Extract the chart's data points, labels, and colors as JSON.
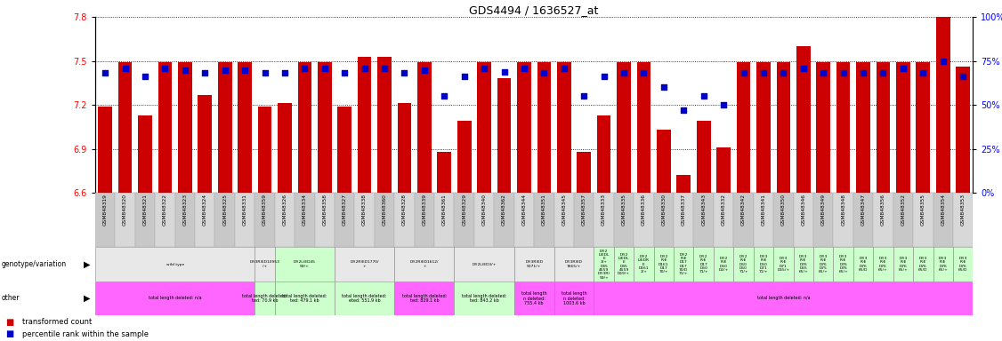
{
  "title": "GDS4494 / 1636527_at",
  "samples": [
    "GSM848319",
    "GSM848320",
    "GSM848321",
    "GSM848322",
    "GSM848323",
    "GSM848324",
    "GSM848325",
    "GSM848331",
    "GSM848359",
    "GSM848326",
    "GSM848334",
    "GSM848358",
    "GSM848327",
    "GSM848338",
    "GSM848360",
    "GSM848328",
    "GSM848339",
    "GSM848361",
    "GSM848329",
    "GSM848340",
    "GSM848362",
    "GSM848344",
    "GSM848351",
    "GSM848345",
    "GSM848357",
    "GSM848333",
    "GSM848335",
    "GSM848336",
    "GSM848330",
    "GSM848337",
    "GSM848343",
    "GSM848332",
    "GSM848342",
    "GSM848341",
    "GSM848350",
    "GSM848346",
    "GSM848349",
    "GSM848348",
    "GSM848347",
    "GSM848356",
    "GSM848352",
    "GSM848355",
    "GSM848354",
    "GSM848353"
  ],
  "red_values": [
    7.19,
    7.49,
    7.13,
    7.49,
    7.49,
    7.27,
    7.49,
    7.49,
    7.19,
    7.21,
    7.49,
    7.49,
    7.19,
    7.53,
    7.53,
    7.21,
    7.49,
    6.88,
    7.09,
    7.49,
    7.38,
    7.49,
    7.49,
    7.49,
    6.88,
    7.13,
    7.49,
    7.49,
    7.03,
    6.72,
    7.09,
    6.91,
    7.49,
    7.49,
    7.49,
    7.6,
    7.49,
    7.49,
    7.49,
    7.49,
    7.49,
    7.49,
    7.8,
    7.46
  ],
  "blue_values_pct": [
    68,
    71,
    66,
    71,
    70,
    68,
    70,
    70,
    68,
    68,
    71,
    71,
    68,
    71,
    71,
    68,
    70,
    55,
    66,
    71,
    69,
    71,
    68,
    71,
    55,
    66,
    68,
    68,
    60,
    47,
    55,
    50,
    68,
    68,
    68,
    71,
    68,
    68,
    68,
    68,
    71,
    68,
    75,
    66
  ],
  "ylim_left": [
    6.6,
    7.8
  ],
  "ylim_right": [
    0,
    100
  ],
  "yticks_left": [
    6.6,
    6.9,
    7.2,
    7.5,
    7.8
  ],
  "yticks_right": [
    0,
    25,
    50,
    75,
    100
  ],
  "bar_color": "#cc0000",
  "dot_color": "#0000cc",
  "genotype_groups": [
    {
      "label": "wild type",
      "start": 0,
      "end": 8,
      "color": "#e8e8e8"
    },
    {
      "label": "Df(3R)ED10953\n/+",
      "start": 8,
      "end": 9,
      "color": "#e8e8e8"
    },
    {
      "label": "Df(2L)ED45\n59/+",
      "start": 9,
      "end": 12,
      "color": "#ccffcc"
    },
    {
      "label": "Df(2R)ED1770/\n+",
      "start": 12,
      "end": 15,
      "color": "#e8e8e8"
    },
    {
      "label": "Df(2R)ED1612/\n+",
      "start": 15,
      "end": 18,
      "color": "#e8e8e8"
    },
    {
      "label": "Df(2L)ED3/+",
      "start": 18,
      "end": 21,
      "color": "#e8e8e8"
    },
    {
      "label": "Df(3R)ED\n5071/+",
      "start": 21,
      "end": 23,
      "color": "#e8e8e8"
    },
    {
      "label": "Df(3R)ED\n7665/+",
      "start": 23,
      "end": 25,
      "color": "#e8e8e8"
    },
    {
      "label": "Df(2\nL)EDL\nE\n3/+\nD45\n4559\nDf(3R)\n59/+",
      "start": 25,
      "end": 26,
      "color": "#ccffcc"
    },
    {
      "label": "Df(2\nL)EDL\nE\nD45\n4559\nD69/+",
      "start": 26,
      "end": 27,
      "color": "#ccffcc"
    },
    {
      "label": "Df(2\nL)EDR\nE\nD161\n2/+",
      "start": 27,
      "end": 28,
      "color": "#ccffcc"
    },
    {
      "label": "Df(2\nR)E\nD161\nD17\n70/+",
      "start": 28,
      "end": 29,
      "color": "#ccffcc"
    },
    {
      "label": "Df(2\nR)E\nD17\nD17\n70/D\n71/+",
      "start": 29,
      "end": 30,
      "color": "#ccffcc"
    },
    {
      "label": "Df(2\nR)E\nD17\nD50\n71/+",
      "start": 30,
      "end": 31,
      "color": "#ccffcc"
    },
    {
      "label": "Df(2\nR)E\nD50\nD2/+",
      "start": 31,
      "end": 32,
      "color": "#ccffcc"
    },
    {
      "label": "Df(2\nR)E\nD50\nD50\n71/+",
      "start": 32,
      "end": 33,
      "color": "#ccffcc"
    },
    {
      "label": "Df(3\nR)E\nD50\nD71\n71/+",
      "start": 33,
      "end": 34,
      "color": "#ccffcc"
    },
    {
      "label": "Df(3\nR)E\nD71\nD65/+",
      "start": 34,
      "end": 35,
      "color": "#ccffcc"
    },
    {
      "label": "Df(3\nR)E\nD76\nD65\n65/+",
      "start": 35,
      "end": 36,
      "color": "#ccffcc"
    },
    {
      "label": "Df(3\nR)E\nD76\nD75\n65/+",
      "start": 36,
      "end": 37,
      "color": "#ccffcc"
    },
    {
      "label": "Df(3\nR)E\nD76\nD76\n65/+",
      "start": 37,
      "end": 38,
      "color": "#ccffcc"
    },
    {
      "label": "Df(3\nR)E\nD76\n65/D",
      "start": 38,
      "end": 39,
      "color": "#ccffcc"
    },
    {
      "label": "Df(3\nR)E\nD76\n65/+",
      "start": 39,
      "end": 40,
      "color": "#ccffcc"
    },
    {
      "label": "Df(3\nR)E\nD76\n65/+",
      "start": 40,
      "end": 41,
      "color": "#ccffcc"
    },
    {
      "label": "Df(3\nR)E\nD76\n65/D",
      "start": 41,
      "end": 42,
      "color": "#ccffcc"
    },
    {
      "label": "Df(3\nR)E\nD76\n65/+",
      "start": 42,
      "end": 43,
      "color": "#ccffcc"
    },
    {
      "label": "Df(3\nR)E\nD76\n65/D",
      "start": 43,
      "end": 44,
      "color": "#ccffcc"
    }
  ],
  "other_groups": [
    {
      "label": "total length deleted: n/a",
      "start": 0,
      "end": 8,
      "color": "#ff66ff"
    },
    {
      "label": "total length deleted:\nted: 70.9 kb",
      "start": 8,
      "end": 9,
      "color": "#ccffcc"
    },
    {
      "label": "total length deleted:\nted: 479.1 kb",
      "start": 9,
      "end": 12,
      "color": "#ccffcc"
    },
    {
      "label": "total length deleted:\neted: 551.9 kb",
      "start": 12,
      "end": 15,
      "color": "#ccffcc"
    },
    {
      "label": "total length deleted:\nted: 829.1 kb",
      "start": 15,
      "end": 18,
      "color": "#ff66ff"
    },
    {
      "label": "total length deleted:\nted: 843.2 kb",
      "start": 18,
      "end": 21,
      "color": "#ccffcc"
    },
    {
      "label": "total length\nn deleted:\n755.4 kb",
      "start": 21,
      "end": 23,
      "color": "#ff66ff"
    },
    {
      "label": "total length\nn deleted:\n1003.6 kb",
      "start": 23,
      "end": 25,
      "color": "#ff66ff"
    },
    {
      "label": "total length deleted: n/a",
      "start": 25,
      "end": 44,
      "color": "#ff66ff"
    }
  ]
}
